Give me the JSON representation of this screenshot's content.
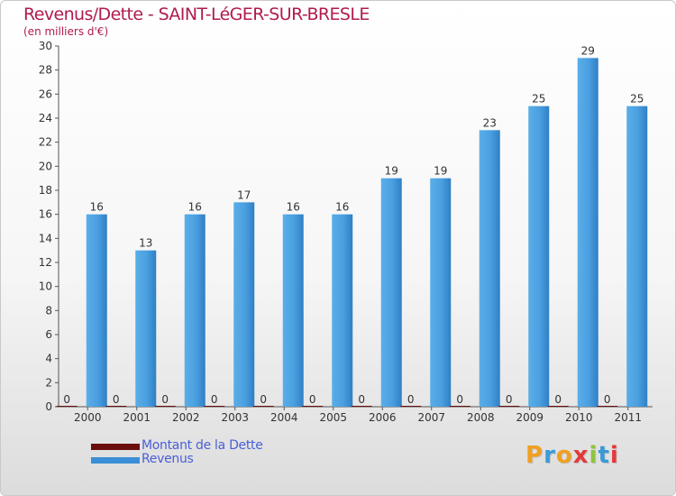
{
  "chart_data": {
    "type": "bar",
    "title": "Revenus/Dette - SAINT-LéGER-SUR-BRESLE",
    "subtitle": "(en milliers d'€)",
    "categories": [
      "2000",
      "2001",
      "2002",
      "2003",
      "2004",
      "2005",
      "2006",
      "2007",
      "2008",
      "2009",
      "2010",
      "2011"
    ],
    "series": [
      {
        "name": "Montant de la Dette",
        "color": "#6b0d0d",
        "values": [
          0,
          0,
          0,
          0,
          0,
          0,
          0,
          0,
          0,
          0,
          0,
          0
        ]
      },
      {
        "name": "Revenus",
        "color": "#3a8fd6",
        "values": [
          16,
          13,
          16,
          17,
          16,
          16,
          19,
          19,
          23,
          25,
          29,
          25
        ]
      }
    ],
    "yticks": [
      0,
      2,
      4,
      6,
      8,
      10,
      12,
      14,
      16,
      18,
      20,
      22,
      24,
      26,
      28,
      30
    ],
    "ylim": [
      0,
      30
    ],
    "grid": false,
    "legend_position": "bottom-left"
  },
  "logo": {
    "text": "Proxiti"
  }
}
